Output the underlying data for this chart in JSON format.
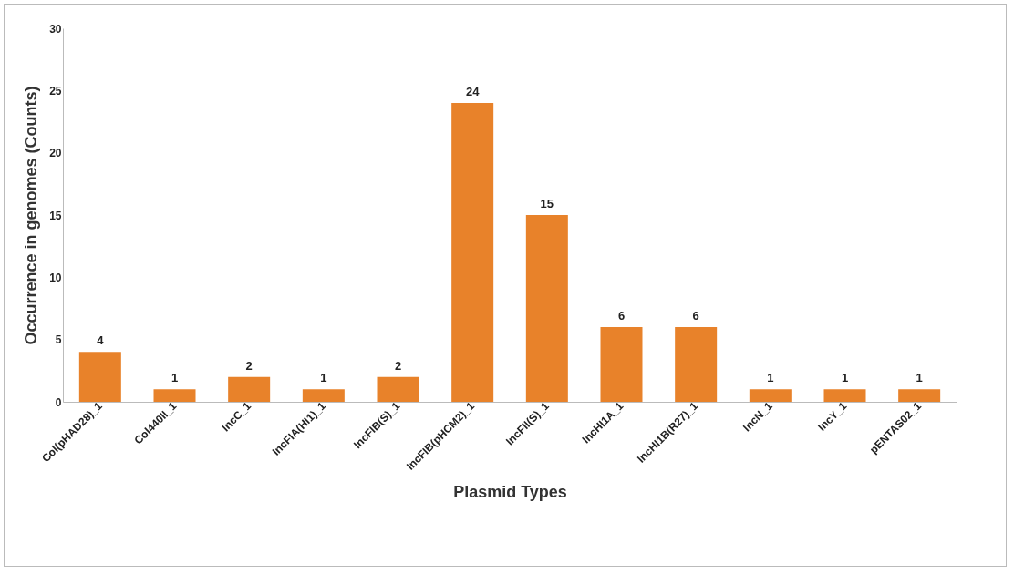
{
  "chart_data": {
    "type": "bar",
    "xlabel": "Plasmid Types",
    "ylabel": "Occurrence in genomes (Counts)",
    "categories": [
      "Col(pHAD28)_1",
      "Col440II_1",
      "IncC_1",
      "IncFIA(HI1)_1",
      "IncFIB(S)_1",
      "IncFIB(pHCM2)_1",
      "IncFII(S)_1",
      "IncHI1A_1",
      "IncHI1B(R27)_1",
      "IncN_1",
      "IncY_1",
      "pENTAS02_1"
    ],
    "values": [
      4,
      1,
      2,
      1,
      2,
      24,
      15,
      6,
      6,
      1,
      1,
      1
    ],
    "color": "#e8822a",
    "ylim": [
      0,
      30
    ],
    "yticks": [
      0,
      5,
      10,
      15,
      20,
      25,
      30
    ],
    "data_labels": true
  }
}
